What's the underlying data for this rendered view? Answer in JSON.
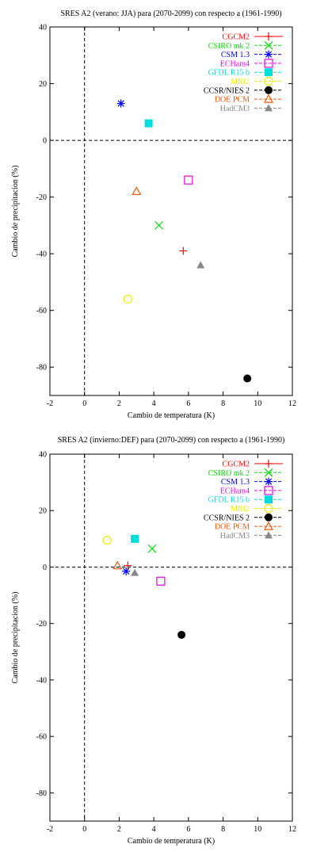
{
  "chart_data": [
    {
      "type": "scatter",
      "title": "SRES A2 (verano: JJA) para (2070-2099) con respecto a (1961-1990)",
      "xlabel": "Cambio de temperatura (K)",
      "ylabel": "Cambio de precipitacion (%)",
      "xlim": [
        -2,
        12
      ],
      "ylim": [
        -90,
        40
      ],
      "xticks": [
        -2,
        0,
        2,
        4,
        6,
        8,
        10,
        12
      ],
      "yticks": [
        -80,
        -60,
        -40,
        -20,
        0,
        20,
        40
      ],
      "legend_position": "top-right",
      "reference_lines": {
        "x": 0,
        "y": 0
      },
      "series": [
        {
          "name": "CGCM2",
          "color": "#ff0000",
          "marker": "plus",
          "x": 5.7,
          "y": -39
        },
        {
          "name": "CSIRO mk 2",
          "color": "#00dd00",
          "marker": "cross",
          "x": 4.3,
          "y": -30
        },
        {
          "name": "CSM 1.3",
          "color": "#0000ff",
          "marker": "star",
          "x": 2.1,
          "y": 13
        },
        {
          "name": "ECHam4",
          "color": "#ee00ee",
          "marker": "open-square",
          "x": 6.0,
          "y": -14
        },
        {
          "name": "GFDL R15 b",
          "color": "#00dddd",
          "marker": "filled-square",
          "x": 3.7,
          "y": 6
        },
        {
          "name": "MRI2",
          "color": "#eeee00",
          "marker": "open-circle",
          "x": 2.5,
          "y": -56
        },
        {
          "name": "CCSR/NIES 2",
          "color": "#000000",
          "marker": "filled-circle",
          "x": 9.4,
          "y": -84
        },
        {
          "name": "DOE PCM",
          "color": "#ff5500",
          "marker": "open-triangle",
          "x": 3.0,
          "y": -18
        },
        {
          "name": "HadCM3",
          "color": "#888888",
          "marker": "filled-triangle",
          "x": 6.7,
          "y": -44
        }
      ]
    },
    {
      "type": "scatter",
      "title": "SRES A2 (invierno:DEF) para (2070-2099) con respecto a (1961-1990)",
      "xlabel": "Cambio de temperatura (K)",
      "ylabel": "Cambio de precipitacion (%)",
      "xlim": [
        -2,
        12
      ],
      "ylim": [
        -90,
        40
      ],
      "xticks": [
        -2,
        0,
        2,
        4,
        6,
        8,
        10,
        12
      ],
      "yticks": [
        -80,
        -60,
        -40,
        -20,
        0,
        20,
        40
      ],
      "legend_position": "top-right",
      "reference_lines": {
        "x": 0,
        "y": 0
      },
      "series": [
        {
          "name": "CGCM2",
          "color": "#ff0000",
          "marker": "plus",
          "x": 2.5,
          "y": 0.5
        },
        {
          "name": "CSIRO mk 2",
          "color": "#00dd00",
          "marker": "cross",
          "x": 3.9,
          "y": 6.5
        },
        {
          "name": "CSM 1.3",
          "color": "#0000ff",
          "marker": "star",
          "x": 2.4,
          "y": -1.5
        },
        {
          "name": "ECHam4",
          "color": "#ee00ee",
          "marker": "open-square",
          "x": 4.4,
          "y": -5
        },
        {
          "name": "GFDL R15 b",
          "color": "#00dddd",
          "marker": "filled-square",
          "x": 2.9,
          "y": 10
        },
        {
          "name": "MRI2",
          "color": "#eeee00",
          "marker": "open-circle",
          "x": 1.3,
          "y": 9.5
        },
        {
          "name": "CCSR/NIES 2",
          "color": "#000000",
          "marker": "filled-circle",
          "x": 5.6,
          "y": -24
        },
        {
          "name": "DOE PCM",
          "color": "#ff5500",
          "marker": "open-triangle",
          "x": 1.9,
          "y": 0.5
        },
        {
          "name": "HadCM3",
          "color": "#888888",
          "marker": "filled-triangle",
          "x": 2.9,
          "y": -2
        }
      ]
    }
  ]
}
